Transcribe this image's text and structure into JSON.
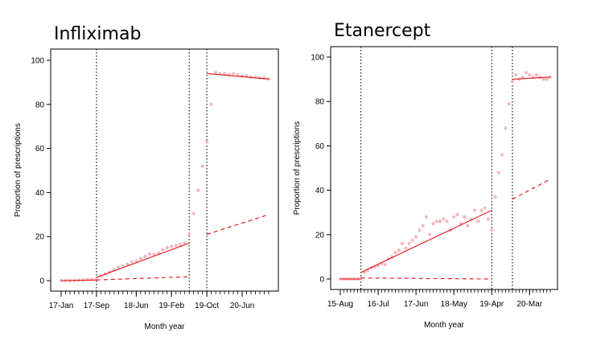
{
  "chart_data": [
    {
      "type": "scatter",
      "title": "Infliximab",
      "xlabel": "Month year",
      "ylabel": "Proportion of prescriptions",
      "ylim": [
        0,
        100
      ],
      "yticks": [
        0,
        20,
        40,
        60,
        80,
        100
      ],
      "xlim": [
        1,
        48
      ],
      "x_tick_months": [
        1,
        9,
        18,
        26,
        34,
        42
      ],
      "x_tick_labels": [
        "17-Jan",
        "17-Sep",
        "18-Jun",
        "19-Feb",
        "19-Oct",
        "20-Jun"
      ],
      "vlines": [
        9,
        30,
        34
      ],
      "grid": false,
      "series": [
        {
          "role": "observed",
          "x": [
            1,
            2,
            3,
            4,
            5,
            6,
            7,
            8,
            9,
            10,
            11,
            12,
            13,
            14,
            15,
            16,
            17,
            18,
            19,
            20,
            21,
            22,
            23,
            24,
            25,
            26,
            27,
            28,
            29,
            30,
            31,
            32,
            33,
            34,
            35,
            36,
            37,
            38,
            39,
            40,
            41,
            42,
            43,
            44,
            45,
            46,
            47,
            48
          ],
          "y": [
            0,
            0,
            0,
            0,
            0.2,
            0.3,
            0.5,
            0.6,
            1,
            2,
            3,
            4,
            5,
            6,
            6.5,
            7.5,
            8.5,
            9,
            10,
            11,
            12,
            12,
            12.5,
            14,
            15,
            15.5,
            16,
            16.5,
            17,
            21,
            30.5,
            41,
            52,
            63,
            80,
            94.5,
            94,
            94,
            93.5,
            94,
            93.5,
            93,
            93,
            92.5,
            92.5,
            92,
            92,
            91.5
          ]
        },
        {
          "role": "fitted",
          "segments": [
            {
              "x": [
                1,
                9
              ],
              "y": [
                0,
                0.3
              ]
            },
            {
              "x": [
                9,
                30
              ],
              "y": [
                1.5,
                17
              ]
            },
            {
              "x": [
                34,
                48
              ],
              "y": [
                94,
                91.5
              ]
            }
          ]
        },
        {
          "role": "counterfactual",
          "segments": [
            {
              "x": [
                9,
                30
              ],
              "y": [
                0.3,
                1.8
              ]
            },
            {
              "x": [
                34,
                48
              ],
              "y": [
                21,
                30
              ]
            }
          ]
        }
      ]
    },
    {
      "type": "scatter",
      "title": "Etanercept",
      "xlabel": "Month year",
      "ylabel": "Proportion of prescriptions",
      "ylim": [
        0,
        100
      ],
      "yticks": [
        0,
        20,
        40,
        60,
        80,
        100
      ],
      "xlim": [
        1,
        62
      ],
      "x_tick_months": [
        1,
        12,
        23,
        34,
        45,
        56
      ],
      "x_tick_labels": [
        "15-Aug",
        "16-Jul",
        "17-Jun",
        "18-May",
        "19-Apr",
        "20-Mar"
      ],
      "vlines": [
        7,
        45,
        51
      ],
      "grid": false,
      "series": [
        {
          "role": "observed",
          "x": [
            1,
            2,
            3,
            4,
            5,
            6,
            7,
            8,
            9,
            10,
            11,
            12,
            13,
            14,
            15,
            16,
            17,
            18,
            19,
            20,
            21,
            22,
            23,
            24,
            25,
            26,
            27,
            28,
            29,
            30,
            31,
            32,
            33,
            34,
            35,
            36,
            37,
            38,
            39,
            40,
            41,
            42,
            43,
            44,
            45,
            46,
            47,
            48,
            49,
            50,
            51,
            52,
            53,
            54,
            55,
            56,
            57,
            58,
            59,
            60,
            61,
            62
          ],
          "y": [
            0,
            0,
            0,
            0,
            0,
            0,
            0.3,
            3,
            4,
            5,
            5.5,
            6,
            7,
            6.5,
            9,
            10,
            12,
            13,
            16,
            14,
            16,
            17.5,
            19,
            22,
            24,
            28,
            20,
            25,
            26,
            26,
            27,
            26,
            22,
            28,
            29,
            25,
            28,
            24,
            27,
            31,
            26,
            31,
            32,
            27,
            22,
            37,
            48,
            56,
            68,
            79,
            89,
            92,
            90,
            91,
            93,
            92,
            91,
            92,
            91,
            90,
            90,
            91
          ],
          "note": "approximate"
        },
        {
          "role": "fitted",
          "segments": [
            {
              "x": [
                1,
                7
              ],
              "y": [
                0,
                0
              ]
            },
            {
              "x": [
                7,
                45
              ],
              "y": [
                3,
                31
              ]
            },
            {
              "x": [
                51,
                62
              ],
              "y": [
                90,
                91
              ]
            }
          ]
        },
        {
          "role": "counterfactual",
          "segments": [
            {
              "x": [
                7,
                45
              ],
              "y": [
                0.5,
                0
              ]
            },
            {
              "x": [
                51,
                62
              ],
              "y": [
                36,
                45
              ]
            }
          ]
        }
      ]
    }
  ]
}
